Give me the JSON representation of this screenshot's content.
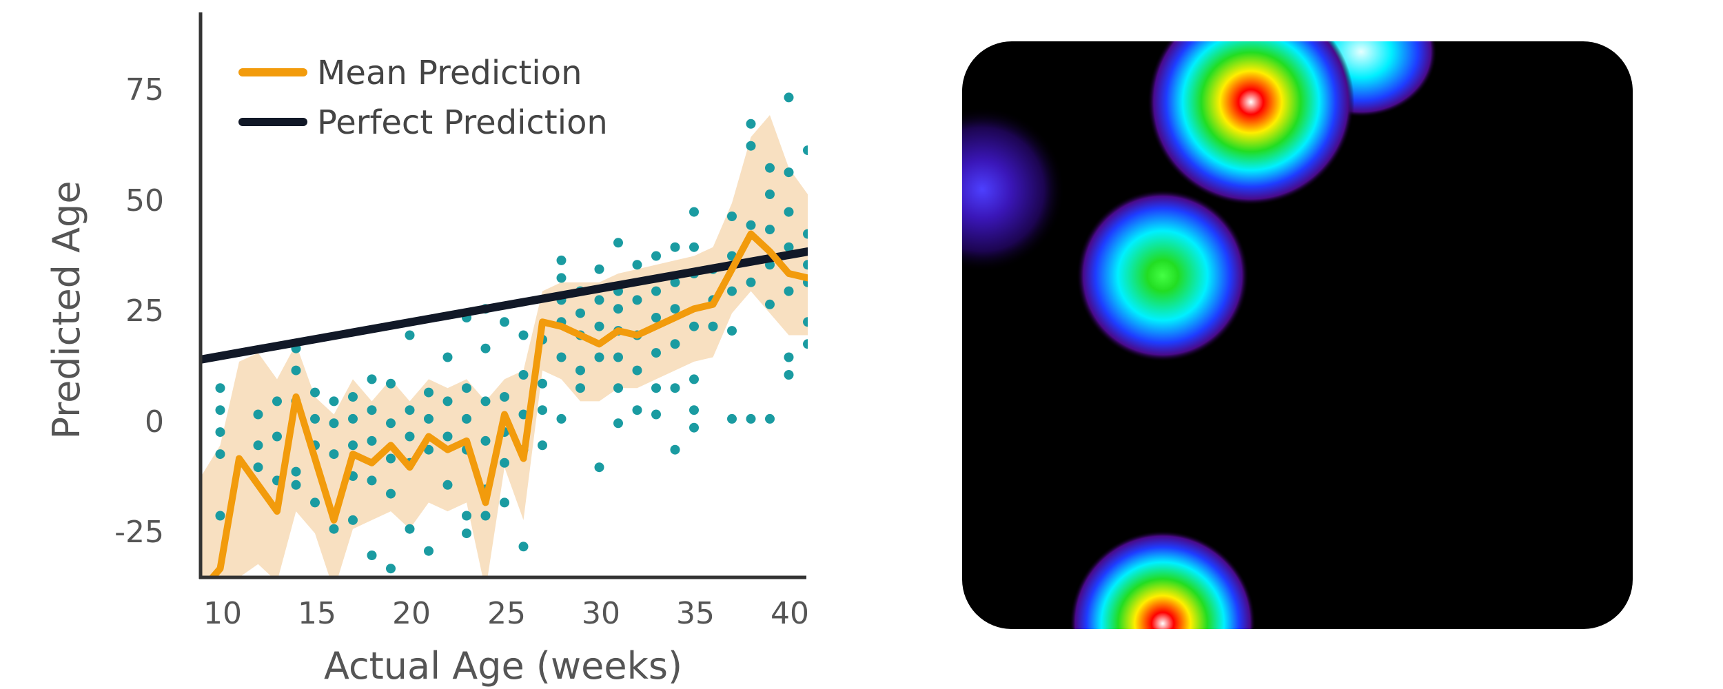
{
  "chart_data": [
    {
      "type": "scatter",
      "title": "",
      "xlabel": "Actual Age (weeks)",
      "ylabel": "Predicted Age",
      "xlim": [
        9,
        41
      ],
      "ylim": [
        -35,
        93
      ],
      "xticks": [
        "10",
        "15",
        "20",
        "25",
        "30",
        "35",
        "40"
      ],
      "yticks": [
        "75",
        "50",
        "25",
        "0",
        "-25"
      ],
      "legend": {
        "position": "top-left",
        "entries": [
          {
            "label": "Mean Prediction",
            "color": "#F29B0C"
          },
          {
            "label": "Perfect Prediction",
            "color": "#111827"
          }
        ]
      },
      "colors": {
        "points": "#1A9BA1",
        "band": "#F7DDBA",
        "mean": "#F29B0C",
        "perfect": "#111827",
        "axis": "#333333"
      },
      "perfect_prediction": {
        "x": [
          9,
          41
        ],
        "y": [
          14.5,
          39
        ]
      },
      "mean_prediction": {
        "x": [
          9,
          10,
          11,
          12,
          13,
          14,
          15,
          16,
          17,
          18,
          19,
          20,
          21,
          22,
          23,
          24,
          25,
          26,
          27,
          28,
          29,
          30,
          31,
          32,
          33,
          34,
          35,
          36,
          37,
          38,
          39,
          40,
          41
        ],
        "y": [
          -38,
          -33,
          -8,
          -14,
          -20,
          6,
          -8,
          -22,
          -7,
          -9,
          -5,
          -10,
          -3,
          -6,
          -4,
          -18,
          2,
          -8,
          23,
          22,
          20,
          18,
          21,
          20,
          22,
          24,
          26,
          27,
          35,
          43,
          39,
          34,
          33
        ]
      },
      "confidence_band": {
        "x": [
          9,
          10,
          11,
          12,
          13,
          14,
          15,
          16,
          17,
          18,
          19,
          20,
          21,
          22,
          23,
          24,
          25,
          26,
          27,
          28,
          29,
          30,
          31,
          32,
          33,
          34,
          35,
          36,
          37,
          38,
          39,
          40,
          41
        ],
        "upper": [
          -12,
          -5,
          14,
          16,
          10,
          18,
          6,
          2,
          10,
          5,
          10,
          5,
          10,
          8,
          10,
          5,
          10,
          12,
          30,
          32,
          32,
          32,
          34,
          35,
          36,
          37,
          38,
          40,
          50,
          65,
          70,
          58,
          52
        ],
        "lower": [
          -38,
          -38,
          -35,
          -32,
          -36,
          -20,
          -25,
          -38,
          -24,
          -22,
          -20,
          -24,
          -18,
          -20,
          -18,
          -38,
          -10,
          -22,
          12,
          10,
          5,
          5,
          8,
          8,
          10,
          12,
          14,
          15,
          25,
          30,
          25,
          20,
          20
        ]
      },
      "points": [
        {
          "x": 10,
          "y": 8
        },
        {
          "x": 10,
          "y": 3
        },
        {
          "x": 10,
          "y": -2
        },
        {
          "x": 10,
          "y": -7
        },
        {
          "x": 10,
          "y": -21
        },
        {
          "x": 12,
          "y": 2
        },
        {
          "x": 12,
          "y": -5
        },
        {
          "x": 12,
          "y": -10
        },
        {
          "x": 13,
          "y": 5
        },
        {
          "x": 13,
          "y": -3
        },
        {
          "x": 13,
          "y": -13
        },
        {
          "x": 14,
          "y": 17
        },
        {
          "x": 14,
          "y": 12
        },
        {
          "x": 14,
          "y": 5
        },
        {
          "x": 14,
          "y": -11
        },
        {
          "x": 14,
          "y": -14
        },
        {
          "x": 15,
          "y": 7
        },
        {
          "x": 15,
          "y": 1
        },
        {
          "x": 15,
          "y": -5
        },
        {
          "x": 15,
          "y": -18
        },
        {
          "x": 16,
          "y": 5
        },
        {
          "x": 16,
          "y": 0
        },
        {
          "x": 16,
          "y": -7
        },
        {
          "x": 16,
          "y": -24
        },
        {
          "x": 17,
          "y": 6
        },
        {
          "x": 17,
          "y": 1
        },
        {
          "x": 17,
          "y": -5
        },
        {
          "x": 17,
          "y": -12
        },
        {
          "x": 17,
          "y": -22
        },
        {
          "x": 18,
          "y": 10
        },
        {
          "x": 18,
          "y": 3
        },
        {
          "x": 18,
          "y": -4
        },
        {
          "x": 18,
          "y": -13
        },
        {
          "x": 18,
          "y": -30
        },
        {
          "x": 19,
          "y": 9
        },
        {
          "x": 19,
          "y": 0
        },
        {
          "x": 19,
          "y": -8
        },
        {
          "x": 19,
          "y": -16
        },
        {
          "x": 19,
          "y": -33
        },
        {
          "x": 20,
          "y": 20
        },
        {
          "x": 20,
          "y": 3
        },
        {
          "x": 20,
          "y": -3
        },
        {
          "x": 20,
          "y": -9
        },
        {
          "x": 20,
          "y": -24
        },
        {
          "x": 21,
          "y": 7
        },
        {
          "x": 21,
          "y": 1
        },
        {
          "x": 21,
          "y": -6
        },
        {
          "x": 21,
          "y": -29
        },
        {
          "x": 22,
          "y": 15
        },
        {
          "x": 22,
          "y": 5
        },
        {
          "x": 22,
          "y": -3
        },
        {
          "x": 22,
          "y": -14
        },
        {
          "x": 23,
          "y": 24
        },
        {
          "x": 23,
          "y": 8
        },
        {
          "x": 23,
          "y": 1
        },
        {
          "x": 23,
          "y": -6
        },
        {
          "x": 23,
          "y": -21
        },
        {
          "x": 23,
          "y": -25
        },
        {
          "x": 24,
          "y": 26
        },
        {
          "x": 24,
          "y": 17
        },
        {
          "x": 24,
          "y": 5
        },
        {
          "x": 24,
          "y": -4
        },
        {
          "x": 24,
          "y": -15
        },
        {
          "x": 24,
          "y": -21
        },
        {
          "x": 25,
          "y": 23
        },
        {
          "x": 25,
          "y": 6
        },
        {
          "x": 25,
          "y": -2
        },
        {
          "x": 25,
          "y": -9
        },
        {
          "x": 25,
          "y": -18
        },
        {
          "x": 26,
          "y": 20
        },
        {
          "x": 26,
          "y": 11
        },
        {
          "x": 26,
          "y": 2
        },
        {
          "x": 26,
          "y": -6
        },
        {
          "x": 26,
          "y": -28
        },
        {
          "x": 27,
          "y": 19
        },
        {
          "x": 27,
          "y": 9
        },
        {
          "x": 27,
          "y": 3
        },
        {
          "x": 27,
          "y": -5
        },
        {
          "x": 28,
          "y": 37
        },
        {
          "x": 28,
          "y": 33
        },
        {
          "x": 28,
          "y": 28
        },
        {
          "x": 28,
          "y": 23
        },
        {
          "x": 28,
          "y": 15
        },
        {
          "x": 28,
          "y": 1
        },
        {
          "x": 29,
          "y": 30
        },
        {
          "x": 29,
          "y": 25
        },
        {
          "x": 29,
          "y": 20
        },
        {
          "x": 29,
          "y": 12
        },
        {
          "x": 29,
          "y": 8
        },
        {
          "x": 30,
          "y": 35
        },
        {
          "x": 30,
          "y": 28
        },
        {
          "x": 30,
          "y": 22
        },
        {
          "x": 30,
          "y": 15
        },
        {
          "x": 30,
          "y": -10
        },
        {
          "x": 31,
          "y": 41
        },
        {
          "x": 31,
          "y": 30
        },
        {
          "x": 31,
          "y": 26
        },
        {
          "x": 31,
          "y": 21
        },
        {
          "x": 31,
          "y": 15
        },
        {
          "x": 31,
          "y": 8
        },
        {
          "x": 31,
          "y": 0
        },
        {
          "x": 32,
          "y": 36
        },
        {
          "x": 32,
          "y": 28
        },
        {
          "x": 32,
          "y": 20
        },
        {
          "x": 32,
          "y": 12
        },
        {
          "x": 32,
          "y": 3
        },
        {
          "x": 33,
          "y": 38
        },
        {
          "x": 33,
          "y": 30
        },
        {
          "x": 33,
          "y": 24
        },
        {
          "x": 33,
          "y": 16
        },
        {
          "x": 33,
          "y": 8
        },
        {
          "x": 33,
          "y": 2
        },
        {
          "x": 34,
          "y": 40
        },
        {
          "x": 34,
          "y": 32
        },
        {
          "x": 34,
          "y": 26
        },
        {
          "x": 34,
          "y": 18
        },
        {
          "x": 34,
          "y": 8
        },
        {
          "x": 34,
          "y": -6
        },
        {
          "x": 35,
          "y": 48
        },
        {
          "x": 35,
          "y": 40
        },
        {
          "x": 35,
          "y": 34
        },
        {
          "x": 35,
          "y": 22
        },
        {
          "x": 35,
          "y": 10
        },
        {
          "x": 35,
          "y": 3
        },
        {
          "x": 35,
          "y": -1
        },
        {
          "x": 36,
          "y": 35
        },
        {
          "x": 36,
          "y": 28
        },
        {
          "x": 36,
          "y": 22
        },
        {
          "x": 37,
          "y": 47
        },
        {
          "x": 37,
          "y": 38
        },
        {
          "x": 37,
          "y": 30
        },
        {
          "x": 37,
          "y": 21
        },
        {
          "x": 37,
          "y": 1
        },
        {
          "x": 38,
          "y": 68
        },
        {
          "x": 38,
          "y": 63
        },
        {
          "x": 38,
          "y": 45
        },
        {
          "x": 38,
          "y": 32
        },
        {
          "x": 38,
          "y": 1
        },
        {
          "x": 39,
          "y": 58
        },
        {
          "x": 39,
          "y": 52
        },
        {
          "x": 39,
          "y": 44
        },
        {
          "x": 39,
          "y": 36
        },
        {
          "x": 39,
          "y": 27
        },
        {
          "x": 39,
          "y": 1
        },
        {
          "x": 40,
          "y": 74
        },
        {
          "x": 40,
          "y": 57
        },
        {
          "x": 40,
          "y": 48
        },
        {
          "x": 40,
          "y": 40
        },
        {
          "x": 40,
          "y": 30
        },
        {
          "x": 40,
          "y": 15
        },
        {
          "x": 40,
          "y": 11
        },
        {
          "x": 41,
          "y": 62
        },
        {
          "x": 41,
          "y": 43
        },
        {
          "x": 41,
          "y": 36
        },
        {
          "x": 41,
          "y": 32
        },
        {
          "x": 41,
          "y": 23
        },
        {
          "x": 41,
          "y": 18
        }
      ]
    },
    {
      "type": "heatmap",
      "title": "",
      "background": "#000000",
      "hotspots": [
        {
          "name": "hotspot-top-center",
          "peak": "high",
          "intensity": 1.0
        },
        {
          "name": "hotspot-top-right-trail",
          "peak": "medium",
          "intensity": 0.55
        },
        {
          "name": "hotspot-left-edge",
          "peak": "low",
          "intensity": 0.2
        },
        {
          "name": "hotspot-middle-left",
          "peak": "medium",
          "intensity": 0.6
        },
        {
          "name": "hotspot-bottom",
          "peak": "high",
          "intensity": 0.95
        }
      ]
    }
  ]
}
